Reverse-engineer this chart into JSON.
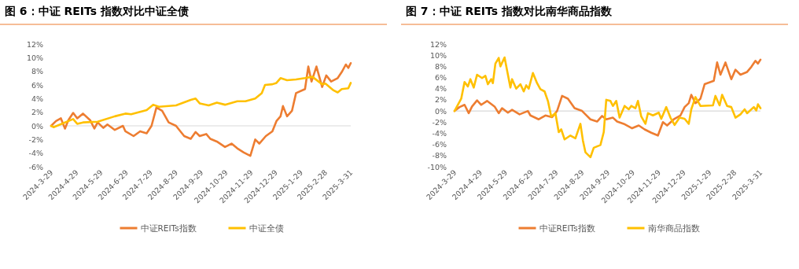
{
  "chart_data": [
    {
      "type": "line",
      "title": "图 6：中证 REITs 指数对比中证全债",
      "legend": "bottom",
      "ref_lines": [
        {
          "axis": "y",
          "value": 0,
          "color": "#d9d9d9"
        }
      ],
      "marker": "none",
      "xlim": [
        "2024-03-29",
        "2025-03-31"
      ],
      "xticks": [
        {
          "value": "2024-03-29",
          "label": "2024-3-29"
        },
        {
          "value": "2024-04-29",
          "label": "2024-4-29"
        },
        {
          "value": "2024-05-29",
          "label": "2024-5-29"
        },
        {
          "value": "2024-06-29",
          "label": "2024-6-29"
        },
        {
          "value": "2024-07-29",
          "label": "2024-7-29"
        },
        {
          "value": "2024-08-29",
          "label": "2024-8-29"
        },
        {
          "value": "2024-09-29",
          "label": "2024-9-29"
        },
        {
          "value": "2024-10-29",
          "label": "2024-10-29"
        },
        {
          "value": "2024-11-29",
          "label": "2024-11-29"
        },
        {
          "value": "2024-12-29",
          "label": "2024-12-29"
        },
        {
          "value": "2025-01-29",
          "label": "2025-1-29"
        },
        {
          "value": "2025-02-28",
          "label": "2025-2-28"
        },
        {
          "value": "2025-03-31",
          "label": "2025-3-31"
        }
      ],
      "ylim": [
        -6,
        12
      ],
      "yticks": [
        {
          "value": -6,
          "label": "-6%"
        },
        {
          "value": -4,
          "label": "-4%"
        },
        {
          "value": -2,
          "label": "-2%"
        },
        {
          "value": 0,
          "label": "0%"
        },
        {
          "value": 2,
          "label": "2%"
        },
        {
          "value": 4,
          "label": "4%"
        },
        {
          "value": 6,
          "label": "6%"
        },
        {
          "value": 8,
          "label": "8%"
        },
        {
          "value": 10,
          "label": "10%"
        },
        {
          "value": 12,
          "label": "12%"
        }
      ],
      "series": [
        {
          "name": "中证REITs指数",
          "color": "#ed7d31",
          "x": [
            "2024-03-29",
            "2024-04-04",
            "2024-04-10",
            "2024-04-15",
            "2024-04-19",
            "2024-04-25",
            "2024-04-30",
            "2024-05-07",
            "2024-05-16",
            "2024-05-21",
            "2024-05-25",
            "2024-06-01",
            "2024-06-06",
            "2024-06-15",
            "2024-06-25",
            "2024-06-28",
            "2024-07-08",
            "2024-07-16",
            "2024-07-24",
            "2024-07-30",
            "2024-08-05",
            "2024-08-12",
            "2024-08-20",
            "2024-08-29",
            "2024-09-02",
            "2024-09-08",
            "2024-09-16",
            "2024-09-22",
            "2024-09-27",
            "2024-10-05",
            "2024-10-10",
            "2024-10-18",
            "2024-10-28",
            "2024-11-05",
            "2024-11-12",
            "2024-11-20",
            "2024-11-28",
            "2024-12-04",
            "2024-12-09",
            "2024-12-17",
            "2024-12-25",
            "2024-12-30",
            "2025-01-04",
            "2025-01-07",
            "2025-01-12",
            "2025-01-18",
            "2025-01-23",
            "2025-02-03",
            "2025-02-07",
            "2025-02-11",
            "2025-02-17",
            "2025-02-24",
            "2025-03-01",
            "2025-03-07",
            "2025-03-15",
            "2025-03-20",
            "2025-03-25",
            "2025-03-28",
            "2025-03-31"
          ],
          "values": [
            0,
            0.7,
            1.1,
            -0.4,
            0.8,
            1.9,
            1.1,
            1.8,
            0.8,
            -0.4,
            0.5,
            -0.3,
            0.2,
            -0.6,
            0,
            -0.8,
            -1.5,
            -0.8,
            -1.1,
            0,
            2.7,
            2.2,
            0.5,
            0,
            -0.6,
            -1.5,
            -1.9,
            -0.9,
            -1.5,
            -1.2,
            -1.9,
            -2.3,
            -3.1,
            -2.6,
            -3.3,
            -3.9,
            -4.4,
            -2,
            -2.6,
            -1.5,
            -0.8,
            0.7,
            1.4,
            2.9,
            1.4,
            2.2,
            4.8,
            5.4,
            8.7,
            6.5,
            8.7,
            5.7,
            7.4,
            6.5,
            7,
            7.9,
            9,
            8.5,
            9.2
          ]
        },
        {
          "name": "中证全债",
          "color": "#ffc000",
          "x": [
            "2024-03-29",
            "2024-04-01",
            "2024-04-25",
            "2024-04-30",
            "2024-05-07",
            "2024-05-25",
            "2024-06-15",
            "2024-06-28",
            "2024-07-05",
            "2024-07-24",
            "2024-08-01",
            "2024-08-08",
            "2024-08-29",
            "2024-09-16",
            "2024-09-22",
            "2024-09-27",
            "2024-10-08",
            "2024-10-18",
            "2024-10-28",
            "2024-11-12",
            "2024-11-22",
            "2024-12-04",
            "2024-12-12",
            "2024-12-16",
            "2024-12-25",
            "2024-12-30",
            "2025-01-04",
            "2025-01-12",
            "2025-01-23",
            "2025-02-03",
            "2025-02-12",
            "2025-02-24",
            "2025-02-28",
            "2025-03-10",
            "2025-03-15",
            "2025-03-20",
            "2025-03-28",
            "2025-03-31"
          ],
          "values": [
            0,
            -0.2,
            1,
            0.3,
            0.5,
            0.6,
            1.4,
            1.8,
            1.7,
            2.3,
            3.1,
            2.8,
            3,
            3.8,
            4,
            3.3,
            3,
            3.4,
            3.1,
            3.6,
            3.6,
            4,
            4.8,
            6,
            6.1,
            6.3,
            7,
            6.7,
            6.8,
            7,
            7.2,
            6.1,
            6.2,
            5.2,
            4.9,
            5.4,
            5.5,
            6.3
          ]
        }
      ]
    },
    {
      "type": "line",
      "title": "图 7：中证 REITs 指数对比南华商品指数",
      "legend": "bottom",
      "ref_lines": [
        {
          "axis": "y",
          "value": 0,
          "color": "#d9d9d9"
        }
      ],
      "marker": "none",
      "xlim": [
        "2024-03-29",
        "2025-03-31"
      ],
      "xticks": [
        {
          "value": "2024-03-29",
          "label": "2024-3-29"
        },
        {
          "value": "2024-04-29",
          "label": "2024-4-29"
        },
        {
          "value": "2024-05-29",
          "label": "2024-5-29"
        },
        {
          "value": "2024-06-29",
          "label": "2024-6-29"
        },
        {
          "value": "2024-07-29",
          "label": "2024-7-29"
        },
        {
          "value": "2024-08-29",
          "label": "2024-8-29"
        },
        {
          "value": "2024-09-29",
          "label": "2024-9-29"
        },
        {
          "value": "2024-10-29",
          "label": "2024-10-29"
        },
        {
          "value": "2024-11-29",
          "label": "2024-11-29"
        },
        {
          "value": "2024-12-29",
          "label": "2024-12-29"
        },
        {
          "value": "2025-01-29",
          "label": "2025-1-29"
        },
        {
          "value": "2025-02-28",
          "label": "2025-2-28"
        },
        {
          "value": "2025-03-31",
          "label": "2025-3-31"
        }
      ],
      "ylim": [
        -10,
        12
      ],
      "yticks": [
        {
          "value": -10,
          "label": "-10%"
        },
        {
          "value": -8,
          "label": "-8%"
        },
        {
          "value": -6,
          "label": "-6%"
        },
        {
          "value": -4,
          "label": "-4%"
        },
        {
          "value": -2,
          "label": "-2%"
        },
        {
          "value": 0,
          "label": "0%"
        },
        {
          "value": 2,
          "label": "2%"
        },
        {
          "value": 4,
          "label": "4%"
        },
        {
          "value": 6,
          "label": "6%"
        },
        {
          "value": 8,
          "label": "8%"
        },
        {
          "value": 10,
          "label": "10%"
        },
        {
          "value": 12,
          "label": "12%"
        }
      ],
      "series": [
        {
          "name": "中证REITs指数",
          "color": "#ed7d31",
          "x": [
            "2024-03-29",
            "2024-04-04",
            "2024-04-10",
            "2024-04-15",
            "2024-04-19",
            "2024-04-25",
            "2024-04-30",
            "2024-05-07",
            "2024-05-16",
            "2024-05-21",
            "2024-05-25",
            "2024-06-01",
            "2024-06-06",
            "2024-06-15",
            "2024-06-25",
            "2024-06-28",
            "2024-07-08",
            "2024-07-16",
            "2024-07-24",
            "2024-07-30",
            "2024-08-05",
            "2024-08-12",
            "2024-08-20",
            "2024-08-29",
            "2024-09-02",
            "2024-09-08",
            "2024-09-16",
            "2024-09-22",
            "2024-09-27",
            "2024-10-05",
            "2024-10-10",
            "2024-10-18",
            "2024-10-28",
            "2024-11-05",
            "2024-11-12",
            "2024-11-20",
            "2024-11-28",
            "2024-12-04",
            "2024-12-09",
            "2024-12-17",
            "2024-12-25",
            "2024-12-30",
            "2025-01-04",
            "2025-01-07",
            "2025-01-12",
            "2025-01-18",
            "2025-01-23",
            "2025-02-03",
            "2025-02-07",
            "2025-02-11",
            "2025-02-17",
            "2025-02-24",
            "2025-03-01",
            "2025-03-07",
            "2025-03-15",
            "2025-03-20",
            "2025-03-25",
            "2025-03-28",
            "2025-03-31"
          ],
          "values": [
            0,
            0.7,
            1.1,
            -0.4,
            0.8,
            1.9,
            1.1,
            1.8,
            0.8,
            -0.4,
            0.5,
            -0.3,
            0.2,
            -0.6,
            0,
            -0.8,
            -1.5,
            -0.8,
            -1.1,
            0,
            2.7,
            2.2,
            0.5,
            0,
            -0.6,
            -1.5,
            -1.9,
            -0.9,
            -1.5,
            -1.2,
            -1.9,
            -2.3,
            -3.1,
            -2.6,
            -3.3,
            -3.9,
            -4.4,
            -2,
            -2.6,
            -1.5,
            -0.8,
            0.7,
            1.4,
            2.9,
            1.4,
            2.2,
            4.8,
            5.4,
            8.7,
            6.5,
            8.7,
            5.7,
            7.4,
            6.5,
            7,
            7.9,
            9,
            8.5,
            9.2
          ]
        },
        {
          "name": "南华商品指数",
          "color": "#ffc000",
          "x": [
            "2024-03-29",
            "2024-04-06",
            "2024-04-10",
            "2024-04-14",
            "2024-04-17",
            "2024-04-21",
            "2024-04-25",
            "2024-05-01",
            "2024-05-05",
            "2024-05-08",
            "2024-05-12",
            "2024-05-14",
            "2024-05-17",
            "2024-05-21",
            "2024-05-23",
            "2024-05-28",
            "2024-06-04",
            "2024-06-06",
            "2024-06-11",
            "2024-06-16",
            "2024-06-20",
            "2024-06-23",
            "2024-06-26",
            "2024-07-01",
            "2024-07-06",
            "2024-07-10",
            "2024-07-15",
            "2024-07-19",
            "2024-07-23",
            "2024-07-28",
            "2024-08-01",
            "2024-08-04",
            "2024-08-08",
            "2024-08-15",
            "2024-08-21",
            "2024-08-27",
            "2024-08-30",
            "2024-09-02",
            "2024-09-08",
            "2024-09-12",
            "2024-09-20",
            "2024-09-24",
            "2024-09-27",
            "2024-10-02",
            "2024-10-05",
            "2024-10-09",
            "2024-10-13",
            "2024-10-19",
            "2024-10-24",
            "2024-10-27",
            "2024-11-01",
            "2024-11-04",
            "2024-11-08",
            "2024-11-13",
            "2024-11-16",
            "2024-11-22",
            "2024-11-29",
            "2024-12-02",
            "2024-12-08",
            "2024-12-13",
            "2024-12-18",
            "2024-12-24",
            "2024-12-30",
            "2025-01-04",
            "2025-01-07",
            "2025-01-12",
            "2025-01-18",
            "2025-02-02",
            "2025-02-05",
            "2025-02-10",
            "2025-02-13",
            "2025-02-19",
            "2025-02-24",
            "2025-03-01",
            "2025-03-07",
            "2025-03-12",
            "2025-03-15",
            "2025-03-23",
            "2025-03-26",
            "2025-03-28",
            "2025-03-31"
          ],
          "values": [
            0,
            2.2,
            5.2,
            4.4,
            5.7,
            4.2,
            6.5,
            5.9,
            6.3,
            4.8,
            5.7,
            5,
            8.5,
            9.5,
            8,
            9.6,
            4.2,
            5.7,
            4,
            4.8,
            3.5,
            4.6,
            4,
            6.8,
            5,
            3.9,
            3.5,
            1.8,
            -1,
            -0.4,
            -3.8,
            -3.3,
            -5.1,
            -4.4,
            -4.9,
            -2.3,
            -5.3,
            -7.4,
            -8.3,
            -6.6,
            -6.1,
            -3.8,
            2,
            1.8,
            0.9,
            1.8,
            -1.2,
            0.9,
            0.3,
            0.9,
            0.5,
            1.8,
            -1,
            -2.3,
            -0.4,
            -0.8,
            -0.3,
            -1.4,
            0.7,
            -1.2,
            -2.5,
            -1.2,
            -1.4,
            -2.3,
            0.3,
            2.5,
            0.9,
            1,
            2.7,
            1,
            2.9,
            0.9,
            0.7,
            -1.2,
            -0.6,
            0.3,
            -0.4,
            0.7,
            0.1,
            1.2,
            0.5
          ]
        }
      ]
    }
  ]
}
